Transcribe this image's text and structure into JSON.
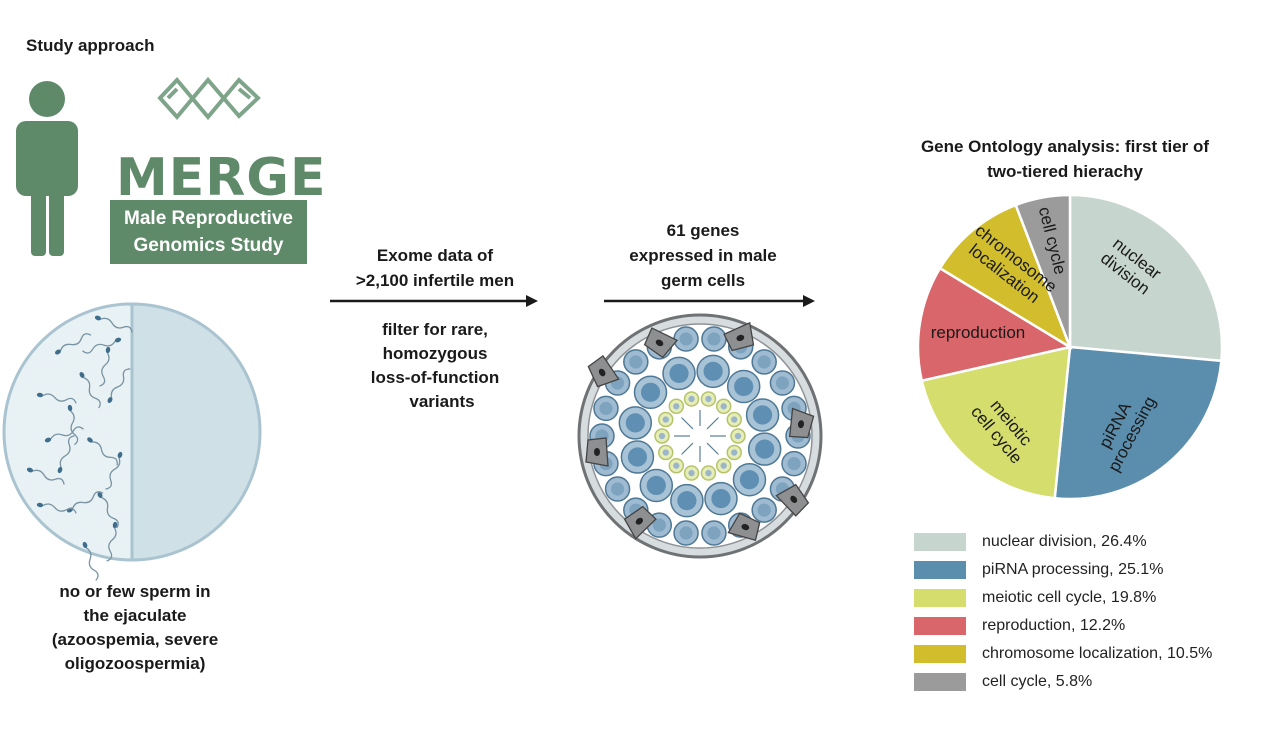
{
  "study": {
    "title": "Study approach",
    "logo_word": "MERGE",
    "logo_sub_line1": "Male Reproductive",
    "logo_sub_line2": "Genomics Study",
    "phenotype_lines": [
      "no or few sperm in",
      "the ejaculate",
      "(azoospemia, severe",
      "oligozoospermia)"
    ]
  },
  "step1": {
    "lines": [
      "Exome data of",
      ">2,100 infertile men"
    ],
    "filter_lines": [
      "filter for rare,",
      "homozygous",
      "loss-of-function",
      "variants"
    ]
  },
  "step2": {
    "lines": [
      "61 genes",
      "expressed in male",
      "germ cells"
    ]
  },
  "go": {
    "title_lines": [
      "Gene Ontology analysis: first tier of",
      "two-tiered hierachy"
    ]
  },
  "colors": {
    "brand_green": "#5f8a6a",
    "arrow": "#1a1a1a"
  },
  "chart_data": {
    "type": "pie",
    "title": "Gene Ontology analysis: first tier of two-tiered hierachy",
    "slices": [
      {
        "label": "nuclear division",
        "value": 26.4,
        "legend": "nuclear division, 26.4%",
        "pie_label": [
          "nuclear",
          "division"
        ],
        "color": "#c6d5cd"
      },
      {
        "label": "piRNA processing",
        "value": 25.1,
        "legend": "piRNA processing, 25.1%",
        "pie_label": [
          "piRNA",
          "processing"
        ],
        "color": "#5b8dad"
      },
      {
        "label": "meiotic cell cycle",
        "value": 19.8,
        "legend": "meiotic cell cycle, 19.8%",
        "pie_label": [
          "meiotic",
          "cell cycle"
        ],
        "color": "#d5dd6c"
      },
      {
        "label": "reproduction",
        "value": 12.2,
        "legend": "reproduction, 12.2%",
        "pie_label": [
          "reproduction"
        ],
        "color": "#d9666a"
      },
      {
        "label": "chromosome localization",
        "value": 10.5,
        "legend": "chromosome localization, 10.5%",
        "pie_label": [
          "chromosome",
          "localization"
        ],
        "color": "#d2be2c"
      },
      {
        "label": "cell cycle",
        "value": 5.8,
        "legend": "cell cycle, 5.8%",
        "pie_label": [
          "cell cycle"
        ],
        "color": "#9b9b9b"
      }
    ],
    "legend_position": "bottom"
  }
}
